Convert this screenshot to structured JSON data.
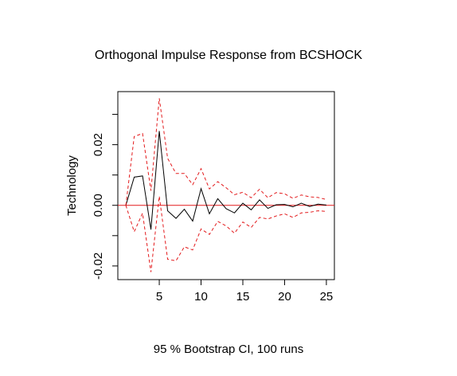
{
  "chart_data": {
    "type": "line",
    "title": "Orthogonal Impulse Response from BCSHOCK",
    "xlabel": "",
    "ylabel": "Technology",
    "subtitle": "95 % Bootstrap CI,  100 runs",
    "xlim": [
      0.04,
      25.96
    ],
    "ylim": [
      -0.0245,
      0.0375
    ],
    "x_ticks": [
      5,
      10,
      15,
      20,
      25
    ],
    "x_tick_labels": [
      "5",
      "10",
      "15",
      "20",
      "25"
    ],
    "y_ticks": [
      -0.02,
      0.0,
      0.02
    ],
    "y_tick_labels": [
      "-0.02",
      "0.00",
      "0.02"
    ],
    "y_minor_ticks": [
      -0.01,
      0.01,
      0.03
    ],
    "grid": false,
    "legend": "none",
    "zero_line": {
      "value": 0,
      "color": "#e31a1c"
    },
    "x": [
      1,
      2,
      3,
      4,
      5,
      6,
      7,
      8,
      9,
      10,
      11,
      12,
      13,
      14,
      15,
      16,
      17,
      18,
      19,
      20,
      21,
      22,
      23,
      24,
      25
    ],
    "series": [
      {
        "role": "response",
        "color": "#000000",
        "dash": "solid",
        "values": [
          0.0,
          0.0093,
          0.0097,
          -0.008,
          0.0245,
          -0.0018,
          -0.0043,
          -0.0013,
          -0.0052,
          0.0055,
          -0.0028,
          0.0022,
          -0.0011,
          -0.0025,
          0.0007,
          -0.0015,
          0.0018,
          -0.001,
          0.0002,
          0.0003,
          -0.0005,
          0.0007,
          -0.0004,
          0.0004,
          0.0001
        ]
      },
      {
        "role": "upper",
        "color": "#e31a1c",
        "dash": "dashed",
        "values": [
          0.0,
          0.0227,
          0.0237,
          0.0048,
          0.0353,
          0.0155,
          0.0105,
          0.0105,
          0.0068,
          0.0121,
          0.0054,
          0.0078,
          0.0058,
          0.0035,
          0.0043,
          0.0025,
          0.0053,
          0.0025,
          0.0042,
          0.0038,
          0.0023,
          0.0034,
          0.0028,
          0.0026,
          0.0019
        ]
      },
      {
        "role": "lower",
        "color": "#e31a1c",
        "dash": "dashed",
        "values": [
          0.0,
          -0.0087,
          -0.0026,
          -0.022,
          0.003,
          -0.0178,
          -0.0183,
          -0.0137,
          -0.0147,
          -0.0078,
          -0.0096,
          -0.0053,
          -0.0068,
          -0.0092,
          -0.0055,
          -0.0073,
          -0.004,
          -0.0045,
          -0.0035,
          -0.0028,
          -0.004,
          -0.0025,
          -0.0023,
          -0.0018,
          -0.002
        ]
      }
    ]
  }
}
